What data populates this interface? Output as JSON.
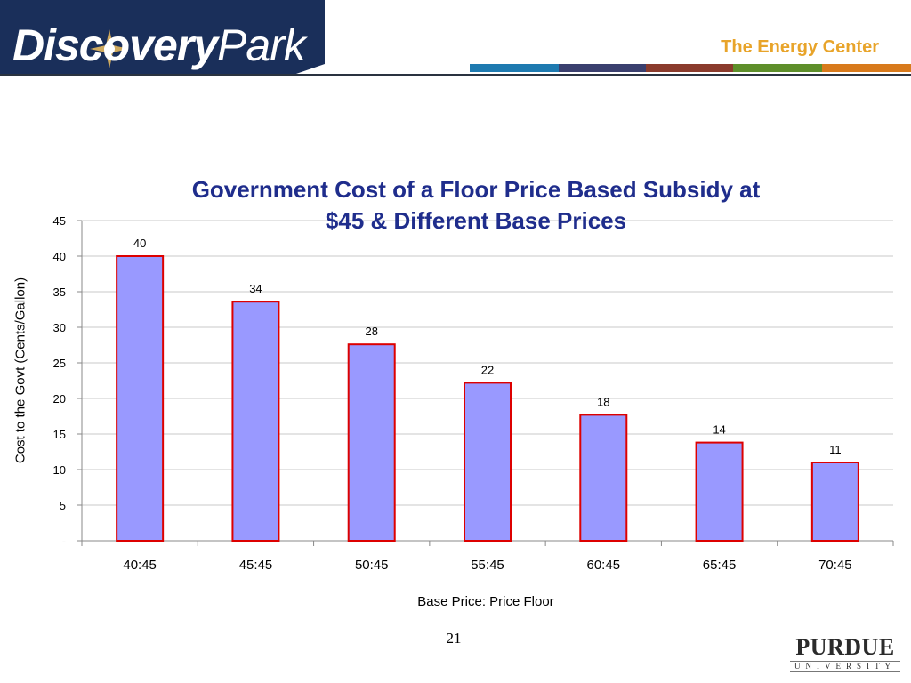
{
  "header": {
    "logo_text_bold": "Discovery",
    "logo_text_thin": "Park",
    "center_title": "The Energy Center",
    "strip_colors": [
      "#1e7ab0",
      "#3a3f6e",
      "#8a3b2c",
      "#5e8f2a",
      "#d87a1c"
    ]
  },
  "chart_data": {
    "type": "bar",
    "title": "Government Cost of a Floor Price Based Subsidy at $45 & Different Base Prices",
    "xlabel": "Base Price: Price Floor",
    "ylabel": "Cost to the Govt (Cents/Gallon)",
    "categories": [
      "40:45",
      "45:45",
      "50:45",
      "55:45",
      "60:45",
      "65:45",
      "70:45"
    ],
    "values": [
      40,
      33.6,
      27.6,
      22.2,
      17.7,
      13.8,
      11.0
    ],
    "data_labels": [
      "40",
      "34",
      "28",
      "22",
      "18",
      "14",
      "11"
    ],
    "ylim": [
      0,
      45
    ],
    "yticks": [
      0,
      5,
      10,
      15,
      20,
      25,
      30,
      35,
      40,
      45
    ],
    "ytick_labels": [
      "-",
      "5",
      "10",
      "15",
      "20",
      "25",
      "30",
      "35",
      "40",
      "45"
    ],
    "grid": true,
    "bar_fill": "#9999ff",
    "bar_stroke": "#dd0000"
  },
  "footer": {
    "page_number": "21",
    "university_name": "PURDUE",
    "university_sub": "UNIVERSITY"
  }
}
